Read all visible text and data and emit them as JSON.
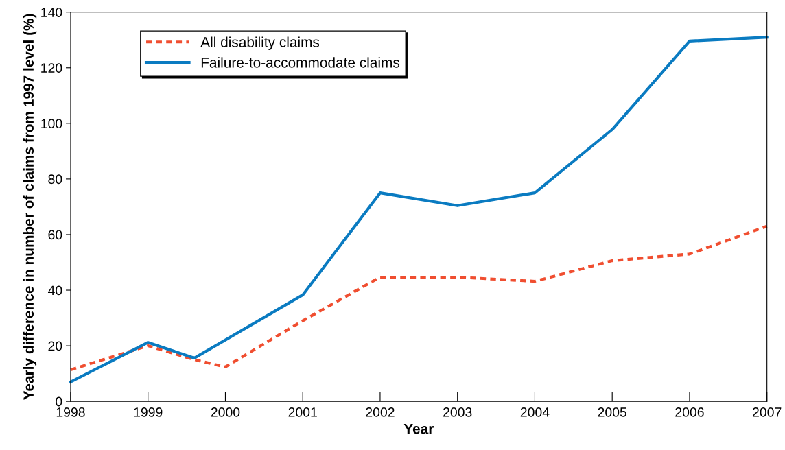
{
  "chart_data": {
    "type": "line",
    "xlabel": "Year",
    "ylabel": "Yearly difference in number of claims from 1997 level (%)",
    "xlim": [
      1998,
      2007
    ],
    "xticks": [
      1998,
      1999,
      2000,
      2001,
      2002,
      2003,
      2004,
      2005,
      2006,
      2007
    ],
    "ylim": [
      0,
      140
    ],
    "yticks": [
      0,
      20,
      40,
      60,
      80,
      100,
      120,
      140
    ],
    "grid": false,
    "legend": "top left",
    "marker": "none",
    "series": [
      {
        "name": "All disability claims",
        "color": "#f04e30",
        "line_style": "dashed",
        "x": [
          1998,
          1999,
          1999.6,
          2000,
          2001,
          2002,
          2003,
          2004,
          2005,
          2006,
          2007
        ],
        "values": [
          11.4,
          20,
          15,
          12.4,
          29,
          44.7,
          44.7,
          43.2,
          50.6,
          53,
          63
        ]
      },
      {
        "name": "Failure-to-accommodate claims",
        "color": "#0a7bc1",
        "line_style": "solid",
        "x": [
          1998,
          1999,
          1999.6,
          2001,
          2002,
          2003,
          2004,
          2005,
          2006,
          2007
        ],
        "values": [
          7,
          21.2,
          15.6,
          38.3,
          75,
          70.4,
          75,
          97.8,
          129.6,
          131
        ]
      }
    ]
  }
}
